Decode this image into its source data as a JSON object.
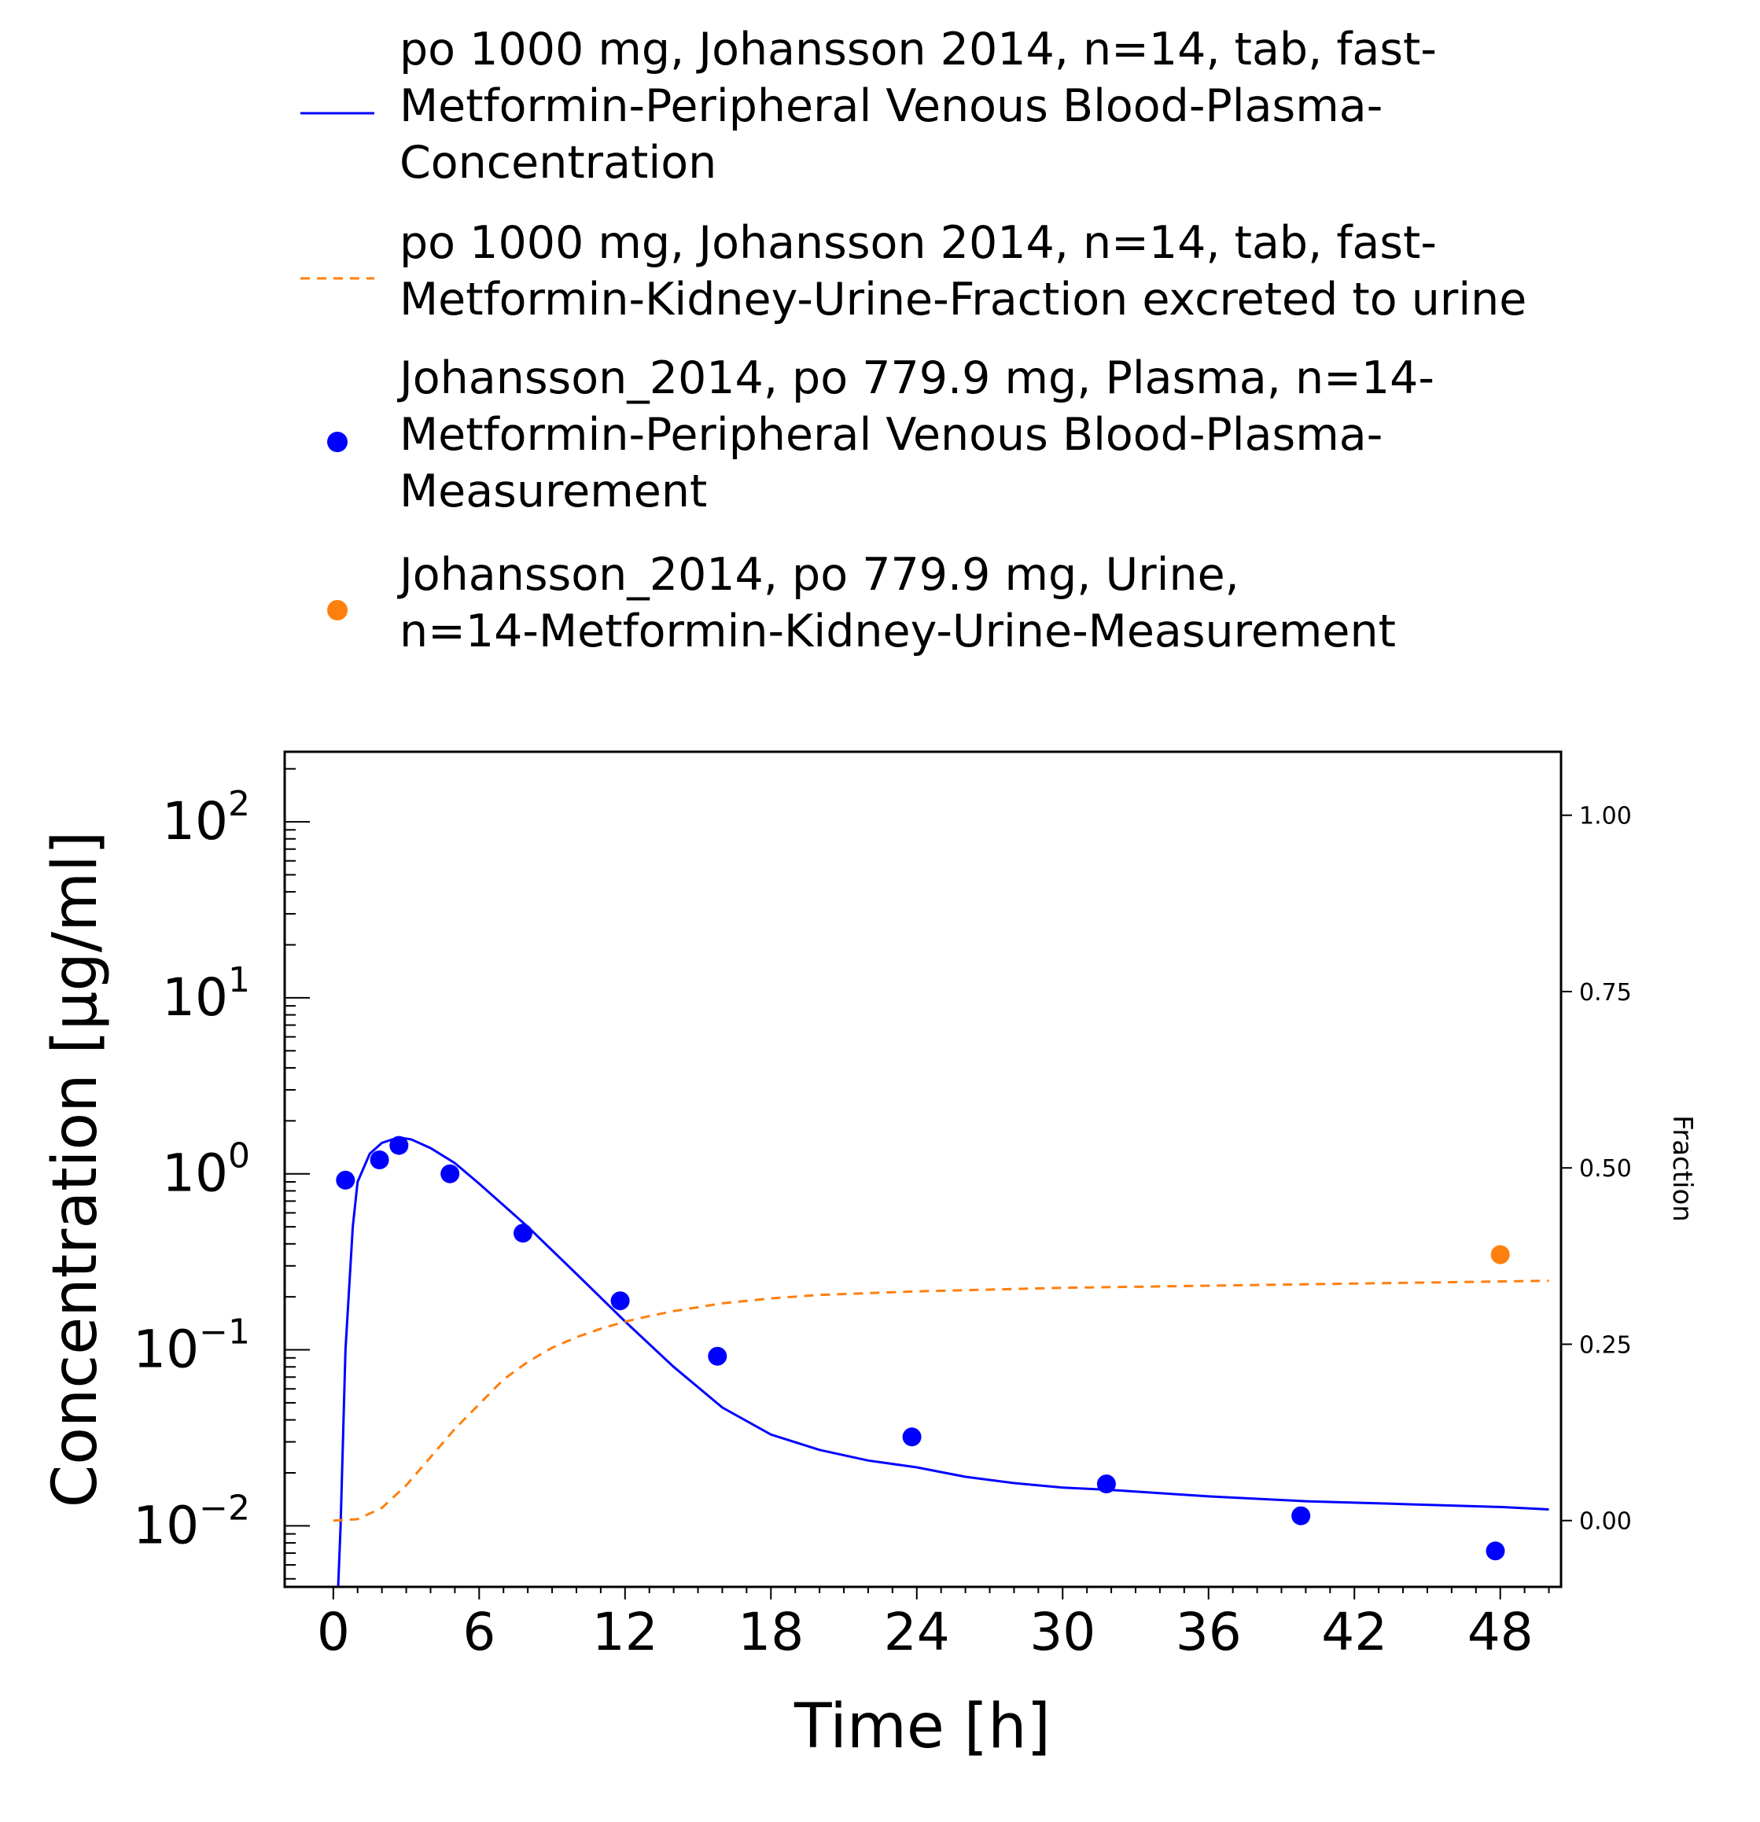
{
  "chart_data": {
    "type": "line",
    "xlabel": "Time [h]",
    "ylabel": "Concentration [µg/ml]",
    "y2label": "Fraction",
    "xlim": [
      -2,
      50.5
    ],
    "ylim": [
      0.0045,
      250
    ],
    "y_scale": "log",
    "y2lim": [
      -0.094,
      1.09
    ],
    "x_ticks": [
      0,
      6,
      12,
      18,
      24,
      30,
      36,
      42,
      48
    ],
    "y_ticks": [
      {
        "value": 100,
        "base": "10",
        "exp": "2"
      },
      {
        "value": 10,
        "base": "10",
        "exp": "1"
      },
      {
        "value": 1,
        "base": "10",
        "exp": "0"
      },
      {
        "value": 0.1,
        "base": "10",
        "exp": "−1"
      },
      {
        "value": 0.01,
        "base": "10",
        "exp": "−2"
      }
    ],
    "y2_ticks": [
      "0.00",
      "0.25",
      "0.50",
      "0.75",
      "1.00"
    ],
    "grid": false,
    "legend_position": "top",
    "series": [
      {
        "name": "po 1000 mg, Johansson 2014, n=14, tab, fast-Metformin-Peripheral Venous Blood-Plasma-Concentration",
        "legend_lines": [
          "po 1000 mg, Johansson 2014, n=14, tab, fast-",
          "Metformin-Peripheral Venous Blood-Plasma-",
          "Concentration"
        ],
        "kind": "line",
        "style": "solid",
        "color": "#0000ff",
        "axis": "left",
        "x": [
          0.2,
          0.3,
          0.5,
          0.8,
          1.0,
          1.5,
          2.0,
          2.5,
          2.8,
          3.2,
          4.0,
          5.0,
          6.0,
          8.0,
          10.0,
          12.0,
          14.0,
          16.0,
          18.0,
          20.0,
          22.0,
          24.0,
          26.0,
          28.0,
          30.0,
          32.0,
          36.0,
          40.0,
          44.0,
          48.0,
          50.0
        ],
        "y": [
          0.0035,
          0.01,
          0.1,
          0.5,
          0.9,
          1.3,
          1.5,
          1.58,
          1.6,
          1.57,
          1.4,
          1.15,
          0.88,
          0.5,
          0.27,
          0.145,
          0.08,
          0.047,
          0.033,
          0.027,
          0.0235,
          0.0215,
          0.019,
          0.0175,
          0.0165,
          0.016,
          0.0147,
          0.0138,
          0.0133,
          0.0128,
          0.0124
        ]
      },
      {
        "name": "po 1000 mg, Johansson 2014, n=14, tab, fast-Metformin-Kidney-Urine-Fraction excreted to urine",
        "legend_lines": [
          "po 1000 mg, Johansson 2014, n=14, tab, fast-",
          "Metformin-Kidney-Urine-Fraction excreted to urine"
        ],
        "kind": "line",
        "style": "dashed",
        "color": "#ff7f0e",
        "axis": "right",
        "x": [
          0,
          1,
          2,
          3,
          4,
          5,
          6,
          7,
          8,
          9,
          10,
          11,
          12,
          13,
          14,
          16,
          18,
          20,
          24,
          30,
          36,
          42,
          48,
          50
        ],
        "y": [
          0.0,
          0.002,
          0.018,
          0.05,
          0.09,
          0.13,
          0.165,
          0.2,
          0.225,
          0.245,
          0.26,
          0.272,
          0.282,
          0.29,
          0.297,
          0.308,
          0.315,
          0.32,
          0.325,
          0.33,
          0.333,
          0.336,
          0.339,
          0.34
        ]
      },
      {
        "name": "Johansson_2014, po 779.9 mg, Plasma, n=14-Metformin-Peripheral Venous Blood-Plasma-Measurement",
        "legend_lines": [
          "Johansson_2014, po 779.9 mg, Plasma, n=14-",
          "Metformin-Peripheral Venous Blood-Plasma-",
          "Measurement"
        ],
        "kind": "scatter",
        "color": "#0000ff",
        "axis": "left",
        "x": [
          0.5,
          1.9,
          2.7,
          4.8,
          7.8,
          11.8,
          15.8,
          23.8,
          31.8,
          39.8,
          47.8
        ],
        "y": [
          0.92,
          1.2,
          1.45,
          1.0,
          0.46,
          0.19,
          0.092,
          0.032,
          0.0173,
          0.0114,
          0.0072
        ]
      },
      {
        "name": "Johansson_2014, po 779.9 mg, Urine, n=14-Metformin-Kidney-Urine-Measurement",
        "legend_lines": [
          "Johansson_2014, po 779.9 mg, Urine,",
          "n=14-Metformin-Kidney-Urine-Measurement"
        ],
        "kind": "scatter",
        "color": "#ff7f0e",
        "axis": "right",
        "x": [
          48.0
        ],
        "y": [
          0.377
        ]
      }
    ]
  }
}
